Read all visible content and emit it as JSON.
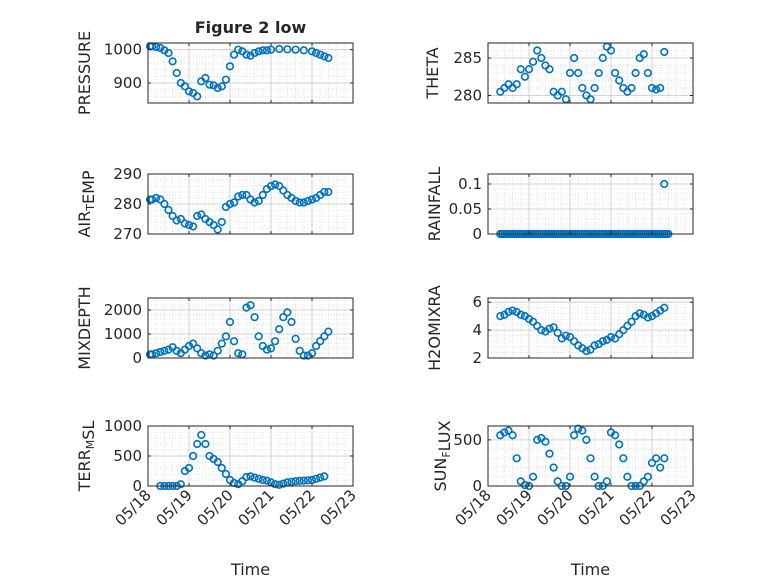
{
  "figure": {
    "title": "Figure 2 low",
    "xlabel": "Time",
    "marker_color": "#0072BD",
    "x_ticks": [
      "05/18",
      "05/19",
      "05/20",
      "05/21",
      "05/22",
      "05/23"
    ]
  },
  "chart_data": [
    {
      "type": "scatter",
      "title": "Figure 2 low",
      "xlabel": "",
      "ylabel": "PRESSURE",
      "ylabel_parts": [
        {
          "t": "PRESSURE",
          "sub": false
        }
      ],
      "ylim": [
        840,
        1020
      ],
      "yticks": [
        900,
        1000
      ],
      "yticklabels": [
        "900",
        "1000"
      ],
      "xlim": [
        0,
        5
      ],
      "grid": true,
      "minor_grid": true,
      "show_xticks": false,
      "series": [
        {
          "x": [
            0.05,
            0.1,
            0.2,
            0.3,
            0.4,
            0.5,
            0.6,
            0.7,
            0.8,
            0.9,
            1.0,
            1.1,
            1.2,
            1.3,
            1.4,
            1.5,
            1.6,
            1.7,
            1.8,
            1.9,
            2.0,
            2.1,
            2.2,
            2.3,
            2.4,
            2.5,
            2.6,
            2.7,
            2.8,
            2.9,
            3.0,
            3.2,
            3.4,
            3.6,
            3.8,
            4.0,
            4.1,
            4.2,
            4.3,
            4.4
          ],
          "y": [
            1010,
            1010,
            1008,
            1005,
            998,
            990,
            965,
            930,
            900,
            890,
            875,
            870,
            860,
            905,
            915,
            895,
            893,
            885,
            890,
            910,
            950,
            985,
            1000,
            995,
            985,
            982,
            990,
            995,
            998,
            998,
            1000,
            1002,
            1001,
            1000,
            998,
            995,
            990,
            985,
            980,
            975
          ]
        }
      ]
    },
    {
      "type": "scatter",
      "title": "",
      "xlabel": "",
      "ylabel": "THETA",
      "ylabel_parts": [
        {
          "t": "THETA",
          "sub": false
        }
      ],
      "ylim": [
        279,
        287
      ],
      "yticks": [
        280,
        285
      ],
      "yticklabels": [
        "280",
        "285"
      ],
      "xlim": [
        0,
        5
      ],
      "grid": true,
      "minor_grid": true,
      "show_xticks": false,
      "series": [
        {
          "x": [
            0.3,
            0.4,
            0.5,
            0.6,
            0.7,
            0.8,
            0.9,
            1.0,
            1.1,
            1.2,
            1.3,
            1.4,
            1.5,
            1.6,
            1.7,
            1.8,
            1.9,
            2.0,
            2.1,
            2.2,
            2.3,
            2.4,
            2.5,
            2.6,
            2.7,
            2.8,
            2.9,
            3.0,
            3.1,
            3.2,
            3.3,
            3.4,
            3.5,
            3.6,
            3.7,
            3.8,
            3.9,
            4.0,
            4.1,
            4.2,
            4.3
          ],
          "y": [
            280.5,
            281,
            281.5,
            281,
            281.5,
            283.5,
            282.5,
            283.5,
            284.5,
            286,
            285,
            284,
            283.5,
            280.5,
            280,
            280.5,
            279.5,
            283,
            285,
            283,
            281,
            280,
            279.5,
            281,
            283,
            285,
            286.5,
            286,
            283,
            282,
            281,
            280.5,
            281,
            283,
            285,
            285.5,
            283,
            281,
            280.8,
            281,
            285.8
          ]
        }
      ]
    },
    {
      "type": "scatter",
      "title": "",
      "xlabel": "",
      "ylabel": "AIR_TEMP",
      "ylabel_parts": [
        {
          "t": "AIR",
          "sub": false
        },
        {
          "t": "T",
          "sub": true
        },
        {
          "t": "EMP",
          "sub": false
        }
      ],
      "ylim": [
        270,
        290
      ],
      "yticks": [
        270,
        280,
        290
      ],
      "yticklabels": [
        "270",
        "280",
        "290"
      ],
      "xlim": [
        0,
        5
      ],
      "grid": true,
      "minor_grid": true,
      "show_xticks": false,
      "series": [
        {
          "x": [
            0.05,
            0.1,
            0.2,
            0.3,
            0.4,
            0.5,
            0.6,
            0.7,
            0.8,
            0.9,
            1.0,
            1.1,
            1.2,
            1.3,
            1.4,
            1.5,
            1.6,
            1.7,
            1.8,
            1.9,
            2.0,
            2.1,
            2.2,
            2.3,
            2.4,
            2.5,
            2.6,
            2.7,
            2.8,
            2.9,
            3.0,
            3.1,
            3.2,
            3.3,
            3.4,
            3.5,
            3.6,
            3.7,
            3.8,
            3.9,
            4.0,
            4.1,
            4.2,
            4.3,
            4.4
          ],
          "y": [
            281.5,
            281.5,
            282,
            281.5,
            280,
            278,
            276,
            274.5,
            275,
            273.5,
            273,
            272.5,
            276,
            276.5,
            275,
            274,
            273,
            271.5,
            274,
            279,
            280,
            280.5,
            282.5,
            283,
            283,
            281.5,
            280.5,
            281,
            283,
            285,
            286,
            286.5,
            286,
            284.5,
            283,
            282,
            281,
            280.5,
            280.5,
            281,
            281.5,
            282,
            283,
            284,
            284
          ]
        }
      ]
    },
    {
      "type": "scatter",
      "title": "",
      "xlabel": "",
      "ylabel": "RAINFALL",
      "ylabel_parts": [
        {
          "t": "RAINFALL",
          "sub": false
        }
      ],
      "ylim": [
        0,
        0.12
      ],
      "yticks": [
        0,
        0.05,
        0.1
      ],
      "yticklabels": [
        "0",
        "0.05",
        "0.1"
      ],
      "xlim": [
        0,
        5
      ],
      "grid": true,
      "minor_grid": true,
      "show_xticks": false,
      "series": [
        {
          "x": [
            0.3,
            0.35,
            0.4,
            0.45,
            0.5,
            0.55,
            0.6,
            0.65,
            0.7,
            0.75,
            0.8,
            0.85,
            0.9,
            0.95,
            1.0,
            1.05,
            1.1,
            1.15,
            1.2,
            1.25,
            1.3,
            1.35,
            1.4,
            1.45,
            1.5,
            1.55,
            1.6,
            1.65,
            1.7,
            1.75,
            1.8,
            1.85,
            1.9,
            1.95,
            2.0,
            2.05,
            2.1,
            2.15,
            2.2,
            2.25,
            2.3,
            2.35,
            2.4,
            2.45,
            2.5,
            2.55,
            2.6,
            2.65,
            2.7,
            2.75,
            2.8,
            2.85,
            2.9,
            2.95,
            3.0,
            3.05,
            3.1,
            3.15,
            3.2,
            3.25,
            3.3,
            3.35,
            3.4,
            3.45,
            3.5,
            3.55,
            3.6,
            3.65,
            3.7,
            3.75,
            3.8,
            3.85,
            3.9,
            3.95,
            4.0,
            4.05,
            4.1,
            4.15,
            4.2,
            4.25,
            4.3,
            4.35,
            4.4,
            4.3
          ],
          "y": [
            0,
            0,
            0,
            0,
            0,
            0,
            0,
            0,
            0,
            0,
            0,
            0,
            0,
            0,
            0,
            0,
            0,
            0,
            0,
            0,
            0,
            0,
            0,
            0,
            0,
            0,
            0,
            0,
            0,
            0,
            0,
            0,
            0,
            0,
            0,
            0,
            0,
            0,
            0,
            0,
            0,
            0,
            0,
            0,
            0,
            0,
            0,
            0,
            0,
            0,
            0,
            0,
            0,
            0,
            0,
            0,
            0,
            0,
            0,
            0,
            0,
            0,
            0,
            0,
            0,
            0,
            0,
            0,
            0,
            0,
            0,
            0,
            0,
            0,
            0,
            0,
            0,
            0,
            0,
            0,
            0,
            0,
            0,
            0.1
          ]
        }
      ]
    },
    {
      "type": "scatter",
      "title": "",
      "xlabel": "",
      "ylabel": "MIXDEPTH",
      "ylabel_parts": [
        {
          "t": "MIXDEPTH",
          "sub": false
        }
      ],
      "ylim": [
        0,
        2500
      ],
      "yticks": [
        0,
        1000,
        2000
      ],
      "yticklabels": [
        "0",
        "1000",
        "2000"
      ],
      "xlim": [
        0,
        5
      ],
      "grid": true,
      "minor_grid": true,
      "show_xticks": false,
      "series": [
        {
          "x": [
            0.05,
            0.1,
            0.2,
            0.3,
            0.4,
            0.5,
            0.6,
            0.7,
            0.8,
            0.9,
            1.0,
            1.1,
            1.2,
            1.3,
            1.4,
            1.5,
            1.6,
            1.7,
            1.8,
            1.9,
            2.0,
            2.1,
            2.2,
            2.3,
            2.4,
            2.5,
            2.6,
            2.7,
            2.8,
            2.9,
            3.0,
            3.1,
            3.2,
            3.3,
            3.4,
            3.5,
            3.6,
            3.7,
            3.8,
            3.9,
            4.0,
            4.1,
            4.2,
            4.3,
            4.4
          ],
          "y": [
            150,
            150,
            200,
            250,
            300,
            350,
            450,
            300,
            200,
            350,
            500,
            600,
            400,
            200,
            100,
            150,
            100,
            300,
            600,
            900,
            1500,
            700,
            200,
            150,
            2100,
            2200,
            1700,
            900,
            500,
            350,
            400,
            700,
            1200,
            1700,
            1900,
            1500,
            800,
            300,
            100,
            100,
            200,
            500,
            700,
            900,
            1100
          ]
        }
      ]
    },
    {
      "type": "scatter",
      "title": "",
      "xlabel": "",
      "ylabel": "H2OMIXRA",
      "ylabel_parts": [
        {
          "t": "H2OMIXRA",
          "sub": false
        }
      ],
      "ylim": [
        2,
        6.3
      ],
      "yticks": [
        2,
        4,
        6
      ],
      "yticklabels": [
        "2",
        "4",
        "6"
      ],
      "xlim": [
        0,
        5
      ],
      "grid": true,
      "minor_grid": true,
      "show_xticks": false,
      "series": [
        {
          "x": [
            0.3,
            0.4,
            0.5,
            0.6,
            0.7,
            0.8,
            0.9,
            1.0,
            1.1,
            1.2,
            1.3,
            1.4,
            1.5,
            1.6,
            1.7,
            1.8,
            1.9,
            2.0,
            2.1,
            2.2,
            2.3,
            2.4,
            2.5,
            2.6,
            2.7,
            2.8,
            2.9,
            3.0,
            3.1,
            3.2,
            3.3,
            3.4,
            3.5,
            3.6,
            3.7,
            3.8,
            3.9,
            4.0,
            4.1,
            4.2,
            4.3
          ],
          "y": [
            5,
            5.1,
            5.3,
            5.4,
            5.3,
            5.1,
            5,
            4.8,
            4.6,
            4.3,
            4,
            3.9,
            4.1,
            4.2,
            3.8,
            3.4,
            3.6,
            3.5,
            3.2,
            2.9,
            2.7,
            2.5,
            2.6,
            2.9,
            3,
            3.2,
            3.3,
            3.5,
            3.4,
            3.7,
            4,
            4.3,
            4.6,
            5,
            5.2,
            5.1,
            4.9,
            5,
            5.2,
            5.4,
            5.6
          ]
        }
      ]
    },
    {
      "type": "scatter",
      "title": "",
      "xlabel": "Time",
      "ylabel": "TERR_MSL",
      "ylabel_parts": [
        {
          "t": "TERR",
          "sub": false
        },
        {
          "t": "M",
          "sub": true
        },
        {
          "t": "SL",
          "sub": false
        }
      ],
      "ylim": [
        0,
        1000
      ],
      "yticks": [
        0,
        500,
        1000
      ],
      "yticklabels": [
        "0",
        "500",
        "1000"
      ],
      "xlim": [
        0,
        5
      ],
      "grid": true,
      "minor_grid": true,
      "show_xticks": true,
      "series": [
        {
          "x": [
            0.3,
            0.4,
            0.5,
            0.6,
            0.7,
            0.8,
            0.9,
            1.0,
            1.1,
            1.2,
            1.3,
            1.4,
            1.5,
            1.6,
            1.7,
            1.8,
            1.9,
            2.0,
            2.1,
            2.2,
            2.3,
            2.4,
            2.5,
            2.6,
            2.7,
            2.8,
            2.9,
            3.0,
            3.1,
            3.2,
            3.3,
            3.4,
            3.5,
            3.6,
            3.7,
            3.8,
            3.9,
            4.0,
            4.1,
            4.2,
            4.3
          ],
          "y": [
            0,
            0,
            0,
            0,
            0,
            30,
            250,
            300,
            500,
            700,
            850,
            700,
            500,
            450,
            400,
            300,
            200,
            100,
            50,
            30,
            80,
            150,
            160,
            140,
            120,
            100,
            90,
            60,
            30,
            20,
            40,
            60,
            70,
            80,
            85,
            90,
            95,
            100,
            120,
            140,
            160
          ]
        }
      ]
    },
    {
      "type": "scatter",
      "title": "",
      "xlabel": "Time",
      "ylabel": "SUN_FLUX",
      "ylabel_parts": [
        {
          "t": "SUN",
          "sub": false
        },
        {
          "t": "F",
          "sub": true
        },
        {
          "t": "LUX",
          "sub": false
        }
      ],
      "ylim": [
        0,
        650
      ],
      "yticks": [
        0,
        500
      ],
      "yticklabels": [
        "0",
        "500"
      ],
      "xlim": [
        0,
        5
      ],
      "grid": true,
      "minor_grid": true,
      "show_xticks": true,
      "series": [
        {
          "x": [
            0.3,
            0.4,
            0.5,
            0.6,
            0.7,
            0.8,
            0.9,
            1.0,
            1.1,
            1.2,
            1.3,
            1.4,
            1.5,
            1.6,
            1.7,
            1.8,
            1.9,
            2.0,
            2.1,
            2.2,
            2.3,
            2.4,
            2.5,
            2.6,
            2.7,
            2.8,
            2.9,
            3.0,
            3.1,
            3.2,
            3.3,
            3.4,
            3.5,
            3.6,
            3.7,
            3.8,
            3.9,
            4.0,
            4.1,
            4.2,
            4.3
          ],
          "y": [
            550,
            580,
            600,
            550,
            300,
            50,
            10,
            0,
            100,
            500,
            520,
            480,
            350,
            200,
            50,
            0,
            0,
            100,
            550,
            620,
            600,
            500,
            300,
            100,
            0,
            0,
            50,
            580,
            550,
            450,
            300,
            100,
            0,
            0,
            0,
            50,
            100,
            250,
            300,
            200,
            300
          ]
        }
      ]
    }
  ]
}
